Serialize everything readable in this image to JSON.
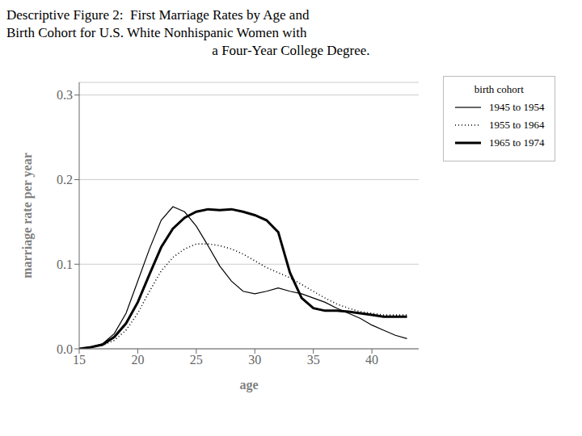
{
  "chart_data": {
    "type": "line",
    "title": [
      "Descriptive Figure 2:  First Marriage Rates by Age and",
      "Birth Cohort for U.S. White Nonhispanic Women with",
      "a Four-Year College Degree."
    ],
    "x_label": "age",
    "y_label": "marriage rate per year",
    "legend_title": "birth cohort",
    "legend": "upper right",
    "grid": true,
    "xlim": [
      15,
      44
    ],
    "ylim": [
      0,
      0.315
    ],
    "xticks": [
      15,
      20,
      25,
      30,
      35,
      40
    ],
    "yticks": [
      {
        "value": 0,
        "label": "0.0"
      },
      0.1,
      0.2,
      0.3
    ],
    "x": [
      15,
      16,
      17,
      18,
      19,
      20,
      21,
      22,
      23,
      24,
      25,
      26,
      27,
      28,
      29,
      30,
      31,
      32,
      33,
      34,
      35,
      36,
      37,
      38,
      39,
      40,
      41,
      42,
      43
    ],
    "series": [
      {
        "name": "1945 to 1954",
        "color": "#000000",
        "line_style": "solid",
        "values": [
          0.0,
          0.002,
          0.006,
          0.018,
          0.042,
          0.08,
          0.118,
          0.152,
          0.168,
          0.162,
          0.145,
          0.122,
          0.098,
          0.08,
          0.068,
          0.065,
          0.068,
          0.072,
          0.068,
          0.065,
          0.06,
          0.055,
          0.048,
          0.042,
          0.036,
          0.028,
          0.022,
          0.016,
          0.012
        ]
      },
      {
        "name": "1955 to 1964",
        "color": "#000000",
        "line_style": "dotted",
        "values": [
          0.0,
          0.002,
          0.004,
          0.01,
          0.022,
          0.042,
          0.068,
          0.092,
          0.108,
          0.118,
          0.124,
          0.124,
          0.122,
          0.118,
          0.112,
          0.104,
          0.096,
          0.09,
          0.084,
          0.076,
          0.068,
          0.06,
          0.053,
          0.048,
          0.044,
          0.042,
          0.04,
          0.04,
          0.04
        ]
      },
      {
        "name": "1965 to 1974",
        "color": "#000000",
        "line_style": "solid",
        "values": [
          0.0,
          0.002,
          0.005,
          0.014,
          0.03,
          0.055,
          0.088,
          0.12,
          0.142,
          0.155,
          0.162,
          0.165,
          0.164,
          0.165,
          0.162,
          0.158,
          0.152,
          0.138,
          0.09,
          0.06,
          0.048,
          0.045,
          0.045,
          0.044,
          0.042,
          0.04,
          0.038,
          0.038,
          0.038
        ]
      }
    ]
  }
}
